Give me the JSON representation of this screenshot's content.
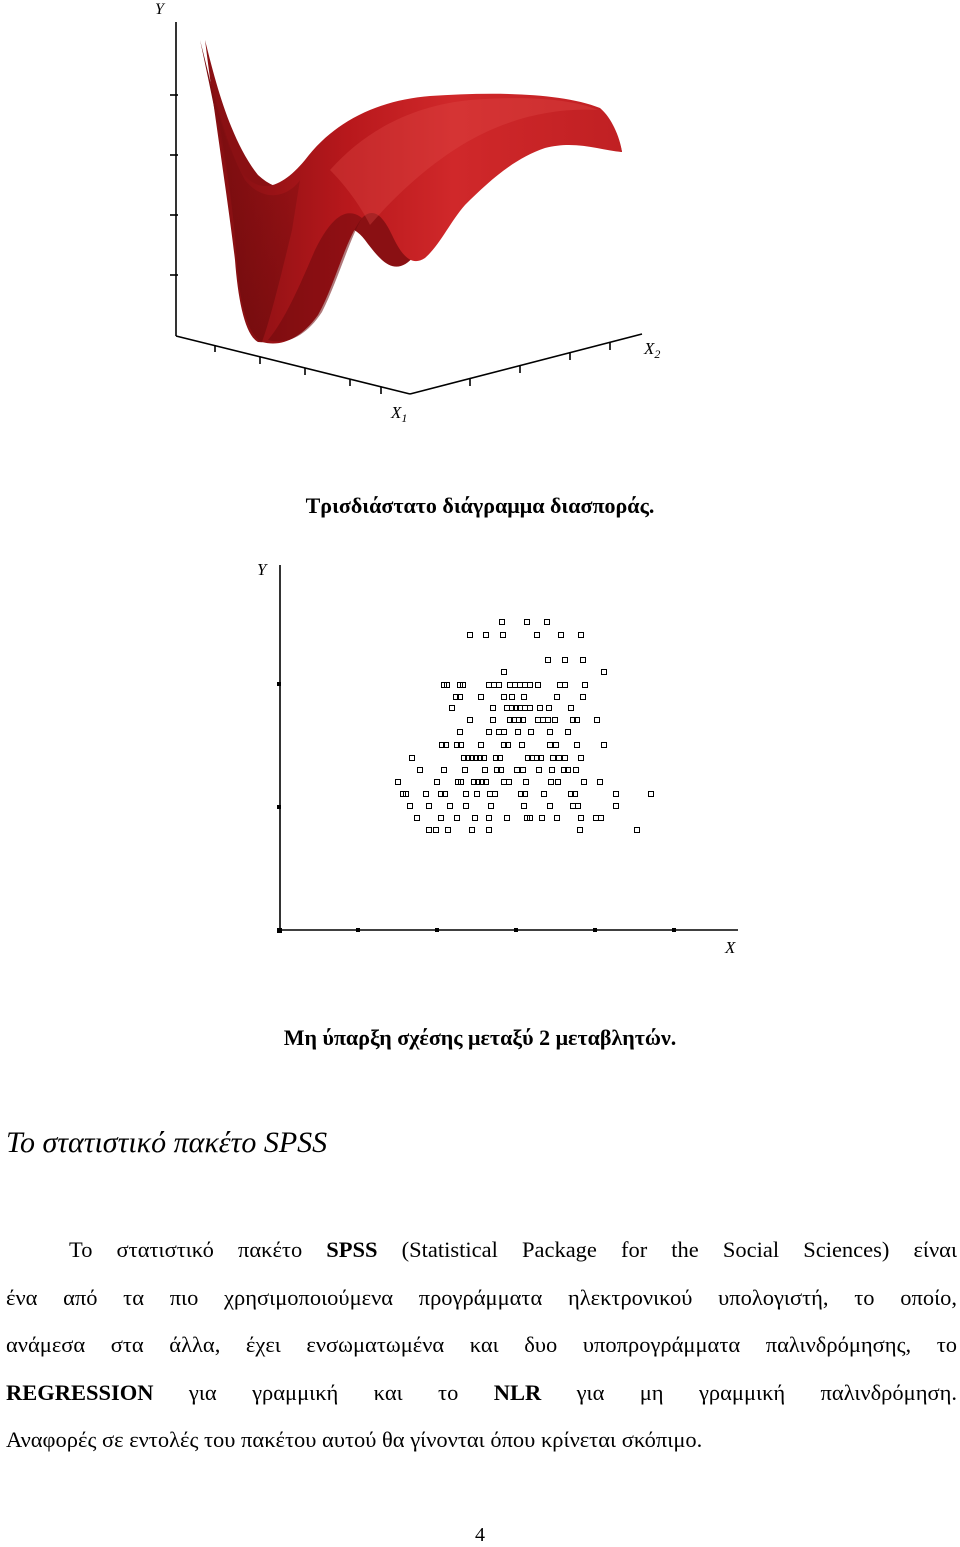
{
  "figure1": {
    "axis_labels": {
      "y": "Y",
      "x1": "X",
      "x1_sub": "1",
      "x2": "X",
      "x2_sub": "2"
    },
    "surface_color": "#b01a1c",
    "caption": "Τρισδιάστατο διάγραμμα διασποράς."
  },
  "figure2": {
    "axis_labels": {
      "y": "Y",
      "x": "X"
    },
    "caption": "Μη ύπαρξη σχέσης μεταξύ 2 μεταβλητών."
  },
  "section": {
    "heading": "Το στατιστικό πακέτο SPSS",
    "para": {
      "l1a": "Το στατιστικό πακέτο ",
      "l1b": "SPSS",
      "l1c": " (Statistical Package for the Social Sciences) είναι",
      "l2": "ένα από τα πιο χρησιμοποιούμενα προγράμματα ηλεκτρονικού υπολογιστή, το οποίο,",
      "l3": "ανάμεσα στα άλλα, έχει ενσωματωμένα και δυο υποπρογράμματα παλινδρόμησης, το",
      "l4a": "REGRESSION",
      "l4b": " για γραμμική και το ",
      "l4c": "NLR",
      "l4d": " για μη γραμμική παλινδρόμηση.",
      "l5": "Αναφορές σε εντολές του πακέτου αυτού θα γίνονται όπου κρίνεται σκόπιμο."
    }
  },
  "page_number": "4"
}
